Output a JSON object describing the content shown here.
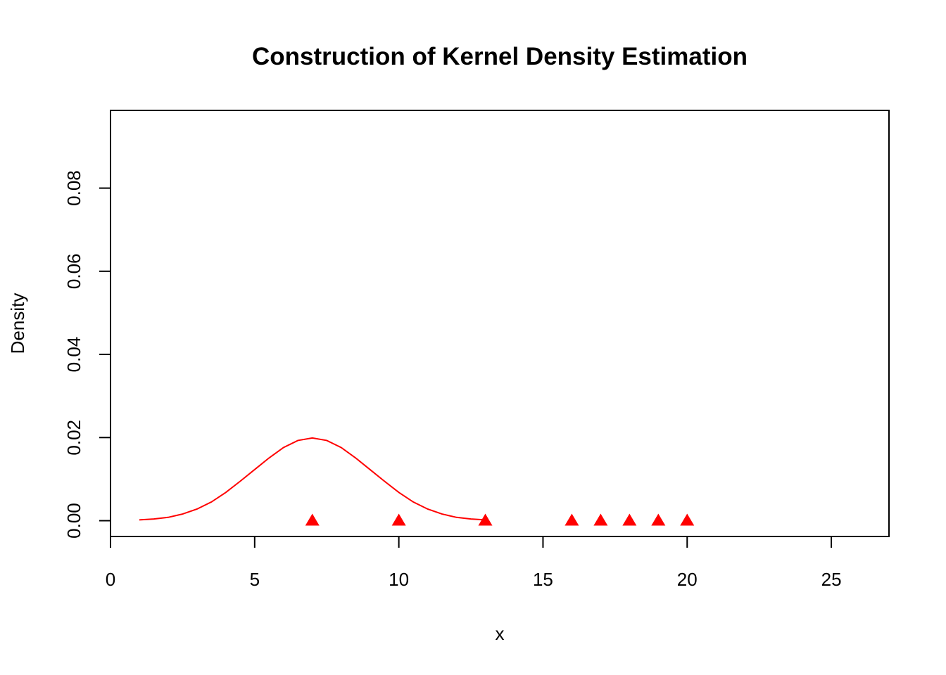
{
  "chart_data": {
    "type": "line",
    "title": "Construction of Kernel Density Estimation",
    "xlabel": "x",
    "ylabel": "Density",
    "xlim": [
      0,
      27
    ],
    "ylim": [
      -0.0038,
      0.0987
    ],
    "xticks": [
      0,
      5,
      10,
      15,
      20,
      25
    ],
    "xtick_labels": [
      "0",
      "5",
      "10",
      "15",
      "20",
      "25"
    ],
    "yticks": [
      0,
      0.02,
      0.04,
      0.06,
      0.08
    ],
    "ytick_labels": [
      "0.00",
      "0.02",
      "0.04",
      "0.06",
      "0.08"
    ],
    "grid": false,
    "legend": "none",
    "series": [
      {
        "kind": "line",
        "color": "#ff0000",
        "x": [
          1,
          1.5,
          2,
          2.5,
          3,
          3.5,
          4,
          4.5,
          5,
          5.5,
          6,
          6.5,
          7,
          7.5,
          8,
          8.5,
          9,
          9.5,
          10,
          10.5,
          11,
          11.5,
          12,
          12.5,
          13
        ],
        "y": [
          0.0002,
          0.0004,
          0.0008,
          0.0016,
          0.0028,
          0.0045,
          0.0068,
          0.0095,
          0.0123,
          0.0151,
          0.0176,
          0.0193,
          0.0199,
          0.0193,
          0.0176,
          0.0151,
          0.0123,
          0.0095,
          0.0068,
          0.0045,
          0.0028,
          0.0016,
          0.0008,
          0.0004,
          0.0002
        ]
      },
      {
        "kind": "points",
        "marker": "triangle",
        "color": "#ff0000",
        "x": [
          7,
          10,
          13,
          16,
          17,
          18,
          19,
          20
        ],
        "y": [
          0,
          0,
          0,
          0,
          0,
          0,
          0,
          0
        ]
      }
    ]
  }
}
